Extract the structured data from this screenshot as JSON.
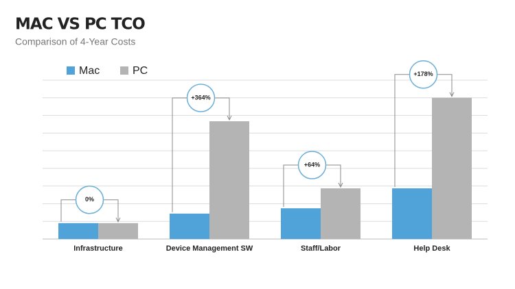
{
  "chart_data": {
    "type": "bar",
    "title": "MAC VS PC TCO",
    "subtitle": "Comparison of 4-Year Costs",
    "categories": [
      "Infrastructure",
      "Device Management SW",
      "Staff/Labor",
      "Help Desk"
    ],
    "series": [
      {
        "name": "Mac",
        "color": "#4fa3d9",
        "values": [
          0.9,
          1.44,
          1.74,
          2.87
        ]
      },
      {
        "name": "PC",
        "color": "#b4b4b4",
        "values": [
          0.9,
          6.67,
          2.87,
          8.0
        ]
      }
    ],
    "annotations": [
      "0%",
      "+364%",
      "+64%",
      "+178%"
    ],
    "ylim": [
      0,
      9
    ],
    "yticks": [
      0,
      1,
      2,
      3,
      4,
      5,
      6,
      7,
      8,
      9
    ],
    "grid": true
  }
}
